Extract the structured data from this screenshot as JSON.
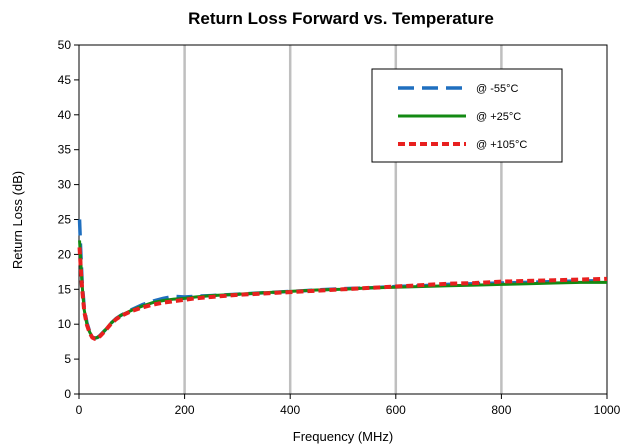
{
  "chart_data": {
    "type": "line",
    "title": "Return Loss Forward vs. Temperature",
    "xlabel": "Frequency (MHz)",
    "ylabel": "Return Loss  (dB)",
    "xlim": [
      0,
      1000
    ],
    "ylim": [
      0,
      50
    ],
    "x_ticks": [
      "0",
      "200",
      "400",
      "600",
      "800",
      "1000"
    ],
    "y_ticks": [
      "0",
      "5",
      "10",
      "15",
      "20",
      "25",
      "30",
      "35",
      "40",
      "45",
      "50"
    ],
    "grid": "vertical",
    "legend_position": "top-right",
    "series": [
      {
        "name": "@ -55°C",
        "color": "#1f6fbf",
        "style": "long-dash",
        "x": [
          1,
          3,
          6,
          10,
          15,
          20,
          25,
          30,
          35,
          40,
          50,
          60,
          70,
          80,
          100,
          120,
          140,
          160,
          180,
          200,
          220,
          250,
          300,
          350,
          400,
          450,
          500,
          550,
          600,
          650,
          700,
          750,
          800,
          850,
          900,
          950,
          1000
        ],
        "y": [
          25,
          21,
          16,
          12.3,
          10.2,
          9,
          8.2,
          8,
          8.1,
          8.4,
          9.2,
          10.1,
          10.8,
          11.3,
          12.1,
          12.8,
          13.3,
          13.7,
          14,
          13.9,
          14,
          14.1,
          14.3,
          14.5,
          14.7,
          14.9,
          15.1,
          15.2,
          15.4,
          15.5,
          15.7,
          15.8,
          15.9,
          16,
          16.1,
          16.2,
          16.2
        ]
      },
      {
        "name": "@ +25°C",
        "color": "#138a13",
        "style": "solid",
        "x": [
          1,
          3,
          6,
          10,
          15,
          20,
          25,
          30,
          35,
          40,
          50,
          60,
          70,
          80,
          100,
          120,
          140,
          160,
          180,
          200,
          220,
          250,
          300,
          350,
          400,
          450,
          500,
          550,
          600,
          650,
          700,
          750,
          800,
          850,
          900,
          950,
          1000
        ],
        "y": [
          22,
          19.5,
          15.5,
          12,
          10,
          8.9,
          8.2,
          8,
          8.1,
          8.4,
          9.2,
          10.1,
          10.8,
          11.3,
          12,
          12.6,
          13.1,
          13.4,
          13.6,
          13.7,
          13.9,
          14.1,
          14.3,
          14.5,
          14.7,
          14.9,
          15,
          15.2,
          15.3,
          15.4,
          15.5,
          15.6,
          15.7,
          15.8,
          15.9,
          16,
          16
        ]
      },
      {
        "name": "@ +105°C",
        "color": "#e8201f",
        "style": "short-dash",
        "x": [
          1,
          3,
          6,
          10,
          15,
          20,
          25,
          30,
          35,
          40,
          50,
          60,
          70,
          80,
          100,
          120,
          140,
          160,
          180,
          200,
          220,
          250,
          300,
          350,
          400,
          450,
          500,
          550,
          600,
          650,
          700,
          750,
          800,
          850,
          900,
          950,
          1000
        ],
        "y": [
          21,
          18.5,
          15,
          11.8,
          9.9,
          8.8,
          8.1,
          7.9,
          8,
          8.3,
          9.1,
          10,
          10.7,
          11.2,
          11.9,
          12.4,
          12.8,
          13.1,
          13.3,
          13.5,
          13.7,
          13.9,
          14.2,
          14.4,
          14.6,
          14.8,
          15,
          15.2,
          15.4,
          15.6,
          15.8,
          15.9,
          16.1,
          16.2,
          16.3,
          16.4,
          16.5
        ]
      }
    ]
  }
}
